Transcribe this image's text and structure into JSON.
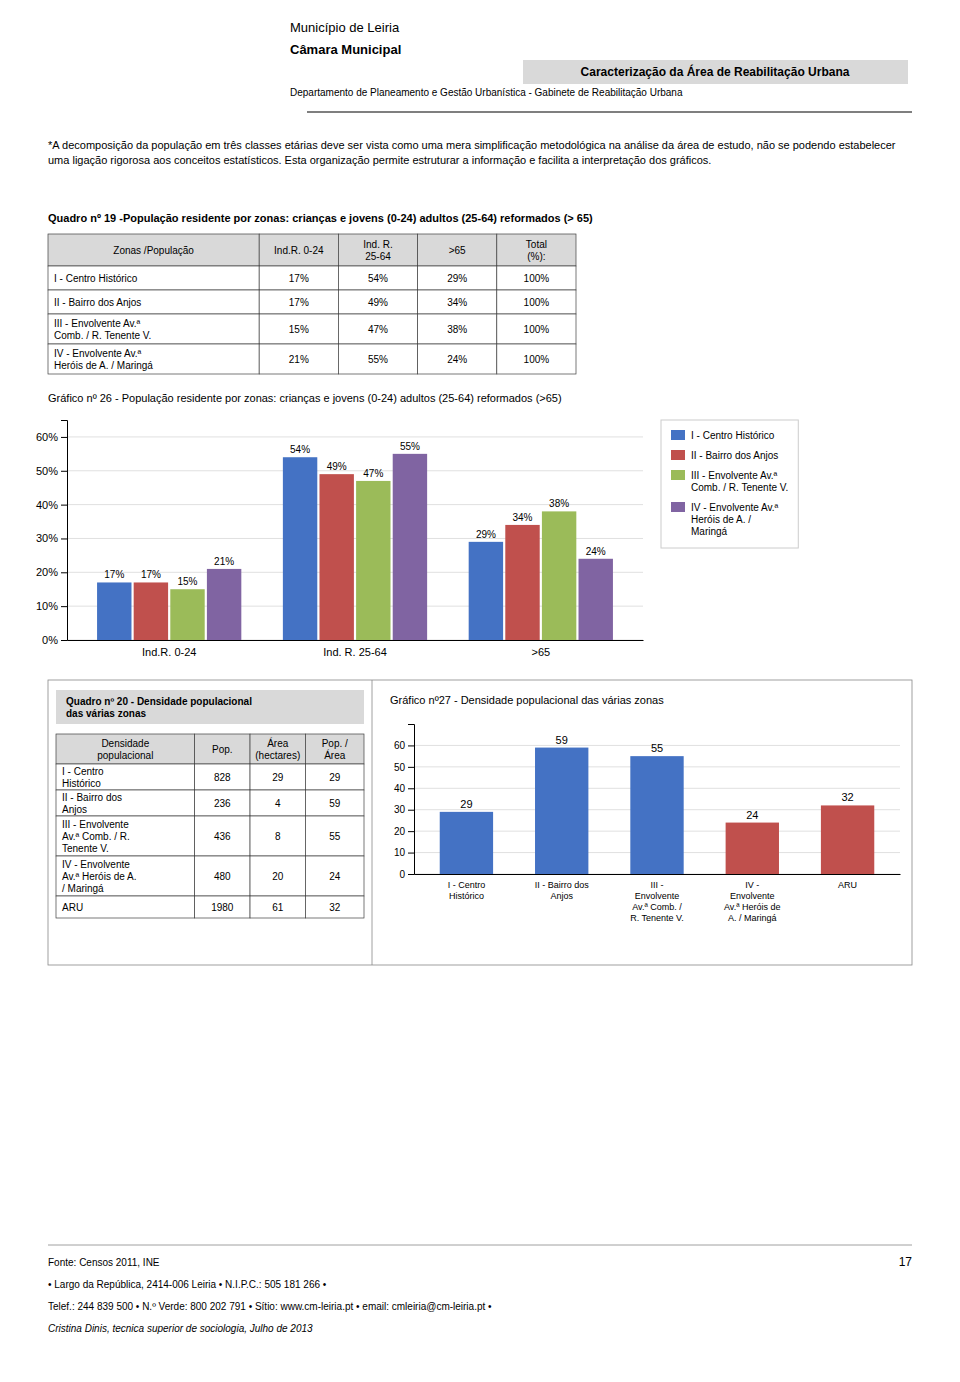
{
  "header": {
    "title_left1": "Município de Leiria",
    "title_left2": "Câmara Municipal",
    "title_left3": "Departamento de Planeamento e Gestão Urbanística - Gabinete de Reabilitação Urbana",
    "title_right": "Caracterização da Área de Reabilitação Urbana"
  },
  "intro_text": "*A decomposição da população em três classes etárias deve ser vista como uma mera simplificação metodológica na análise da área de estudo, não se podendo estabelecer uma ligação rigorosa aos conceitos estatísticos. Esta organização permite estruturar a informação e facilita a interpretação dos gráficos.",
  "tables": [
    {
      "title": "Quadro nº 19 -População residente por zonas: crianças e jovens (0-24) adultos (25-64) reformados (> 65)",
      "headers": [
        "Zonas /População",
        "Ind.R. 0-24",
        "Ind. R.\n25-64",
        ">65",
        "Total\n(%):"
      ],
      "rows": [
        [
          "I - Centro Histórico",
          "17%",
          "54%",
          "29%",
          "100%"
        ],
        [
          "II - Bairro dos Anjos",
          "17%",
          "49%",
          "34%",
          "100%"
        ],
        [
          "III - Envolvente Av.ª\nComb. / R. Tenente V.",
          "15%",
          "47%",
          "38%",
          "100%"
        ],
        [
          "IV - Envolvente Av.ª\nHeróis de A. / Maringá",
          "21%",
          "55%",
          "24%",
          "100%"
        ]
      ]
    },
    {
      "title": "Quadro nº 20 - Densidade populacional\ndas várias zonas",
      "headers": [
        "Densidade\npopulacional",
        "Pop.",
        "Área\n(hectares)",
        "Pop. /\nÁrea"
      ],
      "rows": [
        [
          "I - Centro\nHistórico",
          "828",
          "29",
          "29"
        ],
        [
          "II - Bairro dos\nAnjos",
          "236",
          "4",
          "59"
        ],
        [
          "III - Envolvente\nAv.ª Comb. / R.\nTenente V.",
          "436",
          "8",
          "55"
        ],
        [
          "IV - Envolvente\nAv.ª Heróis de A.\n/ Maringá",
          "480",
          "20",
          "24"
        ],
        [
          "ARU",
          "1980",
          "61",
          "32"
        ]
      ]
    }
  ],
  "chart_data": [
    {
      "type": "bar",
      "title": "Gráfico nº 26 - População residente por zonas: crianças e jovens (0-24) adultos (25-64) reformados (>65)",
      "categories": [
        "Ind.R. 0-24",
        "Ind. R. 25-64",
        ">65"
      ],
      "series": [
        {
          "name": "I - Centro Histórico",
          "color": "#4472C4",
          "values": [
            17,
            54,
            29
          ],
          "value_labels": [
            "17%",
            "54%",
            "29%"
          ]
        },
        {
          "name": "II - Bairro dos Anjos",
          "color": "#C0504D",
          "values": [
            17,
            49,
            34
          ],
          "value_labels": [
            "17%",
            "49%",
            "34%"
          ]
        },
        {
          "name": "III - Envolvente Av.ª\nComb. / R. Tenente V.",
          "color": "#9BBB59",
          "values": [
            15,
            47,
            38
          ],
          "value_labels": [
            "15%",
            "47%",
            "38%"
          ]
        },
        {
          "name": "IV - Envolvente Av.ª\nHeróis de A. /\nMaringá",
          "color": "#8064A2",
          "values": [
            21,
            55,
            24
          ],
          "value_labels": [
            "21%",
            "55%",
            "24%"
          ]
        }
      ],
      "ylim": [
        0,
        65
      ],
      "yticks": [
        {
          "value": 0,
          "label": "0%"
        },
        {
          "value": 10,
          "label": "10%"
        },
        {
          "value": 20,
          "label": "20%"
        },
        {
          "value": 30,
          "label": "30%"
        },
        {
          "value": 40,
          "label": "40%"
        },
        {
          "value": 50,
          "label": "50%"
        },
        {
          "value": 60,
          "label": "60%"
        }
      ],
      "grid": true,
      "legend": "right",
      "data_labels": true
    },
    {
      "type": "bar",
      "title": "Gráfico nº27 - Densidade populacional das várias zonas",
      "categories": [
        "I - Centro\nHistórico",
        "II - Bairro dos\nAnjos",
        "III -\nEnvolvente\nAv.ª Comb. /\nR. Tenente V.",
        "IV -\nEnvolvente\nAv.ª Heróis de\nA. / Maringá",
        "ARU"
      ],
      "values": [
        29,
        59,
        55,
        24,
        32
      ],
      "colors": [
        "#4472C4",
        "#4472C4",
        "#4472C4",
        "#C0504D",
        "#C0504D"
      ],
      "ylim": [
        0,
        70
      ],
      "yticks": [
        0,
        10,
        20,
        30,
        40,
        50,
        60
      ],
      "grid": true,
      "data_labels": true
    }
  ],
  "footer": {
    "lines": [
      "Fonte: Censos 2011, INE",
      "• Largo da República, 2414-006 Leiria • N.I.P.C.: 505 181 266 •",
      "Telef.: 244 839 500 • N.º Verde: 800 202 791 • Sítio: www.cm-leiria.pt • email: cmleiria@cm-leiria.pt •",
      "Cristina Dinis, tecnica superior de sociologia, Julho de 2013"
    ],
    "page_number": "17"
  }
}
